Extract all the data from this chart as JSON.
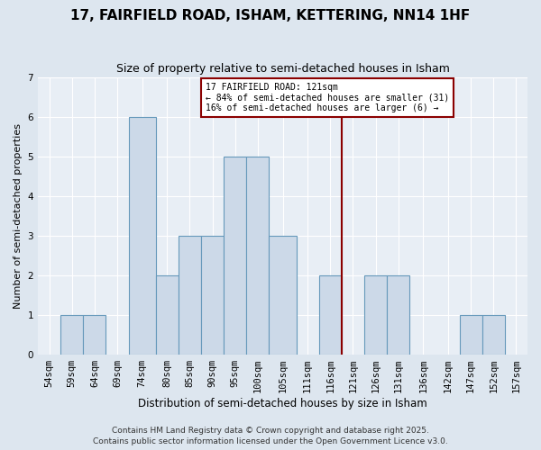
{
  "title": "17, FAIRFIELD ROAD, ISHAM, KETTERING, NN14 1HF",
  "subtitle": "Size of property relative to semi-detached houses in Isham",
  "xlabel": "Distribution of semi-detached houses by size in Isham",
  "ylabel": "Number of semi-detached properties",
  "footer1": "Contains HM Land Registry data © Crown copyright and database right 2025.",
  "footer2": "Contains public sector information licensed under the Open Government Licence v3.0.",
  "bin_labels": [
    "54sqm",
    "59sqm",
    "64sqm",
    "69sqm",
    "74sqm",
    "80sqm",
    "85sqm",
    "90sqm",
    "95sqm",
    "100sqm",
    "105sqm",
    "111sqm",
    "116sqm",
    "121sqm",
    "126sqm",
    "131sqm",
    "136sqm",
    "142sqm",
    "147sqm",
    "152sqm",
    "157sqm"
  ],
  "bar_lefts": [
    54,
    59,
    64,
    69,
    74,
    80,
    85,
    90,
    95,
    100,
    105,
    111,
    116,
    121,
    126,
    131,
    136,
    142,
    147,
    152,
    157
  ],
  "bar_widths": [
    5,
    5,
    5,
    5,
    6,
    5,
    5,
    5,
    5,
    5,
    6,
    5,
    5,
    5,
    5,
    5,
    6,
    5,
    5,
    5,
    5
  ],
  "values": [
    0,
    1,
    1,
    0,
    6,
    2,
    3,
    3,
    5,
    5,
    3,
    0,
    2,
    0,
    2,
    2,
    0,
    0,
    1,
    1,
    0
  ],
  "bar_color": "#ccd9e8",
  "bar_edge_color": "#6699bb",
  "ref_line_x": 121,
  "ref_line_color": "#8B0000",
  "annotation_title": "17 FAIRFIELD ROAD: 121sqm",
  "annotation_line1": "← 84% of semi-detached houses are smaller (31)",
  "annotation_line2": "16% of semi-detached houses are larger (6) →",
  "annotation_box_edge_color": "#8B0000",
  "ylim": [
    0,
    7
  ],
  "yticks": [
    0,
    1,
    2,
    3,
    4,
    5,
    6,
    7
  ],
  "bg_color": "#dde6ef",
  "plot_bg_color": "#e8eef5",
  "grid_color": "#ffffff",
  "title_fontsize": 11,
  "subtitle_fontsize": 9,
  "tick_fontsize": 7.5,
  "ylabel_fontsize": 8,
  "xlabel_fontsize": 8.5,
  "footer_fontsize": 6.5
}
